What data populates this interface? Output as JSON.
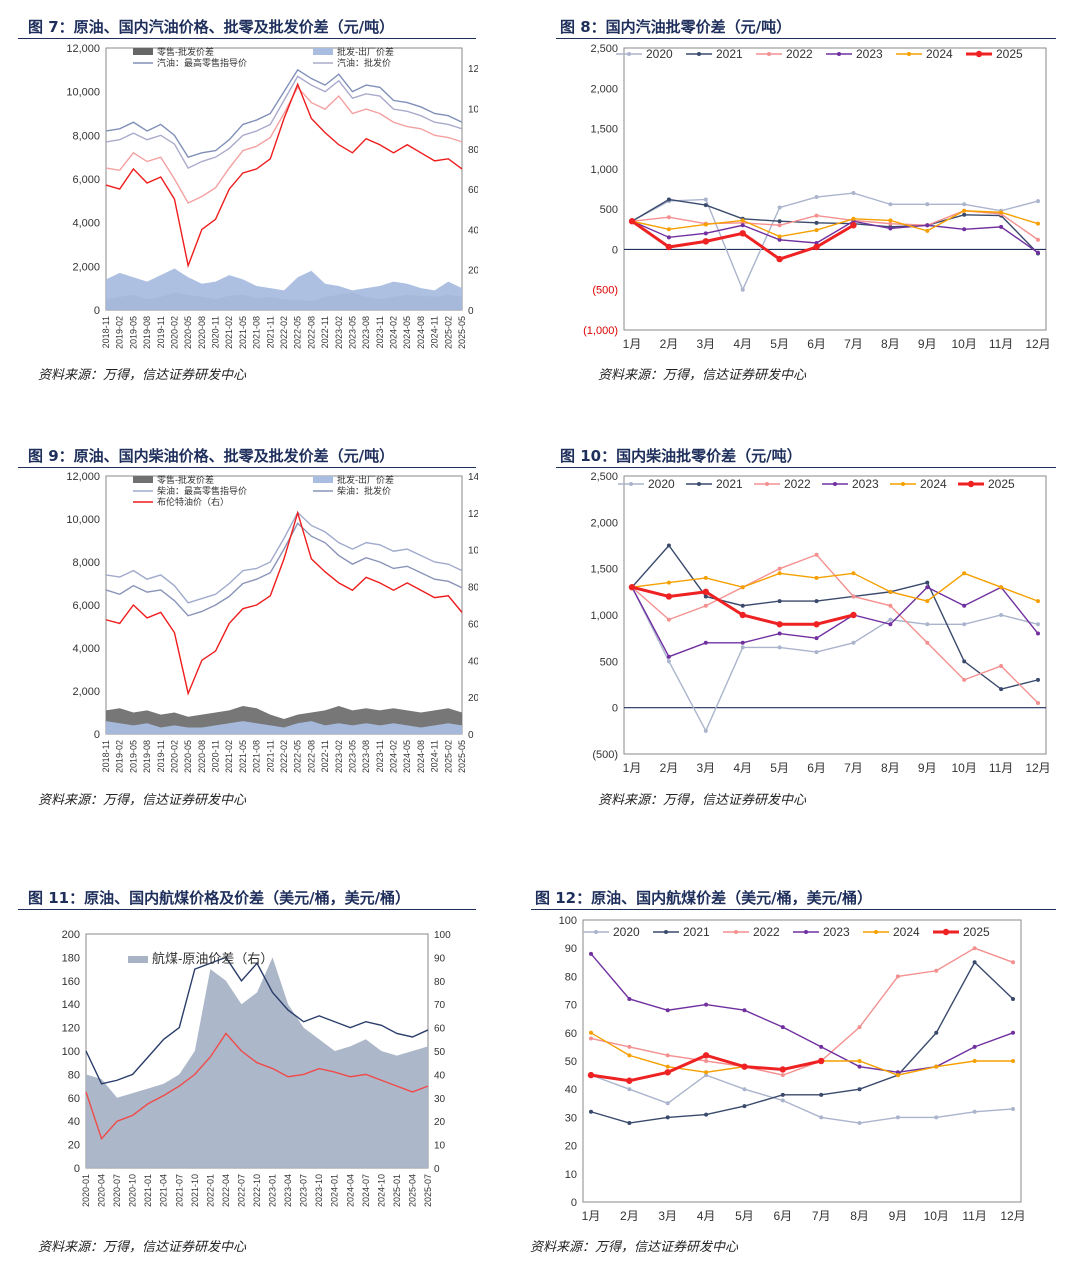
{
  "source": "资料来源：万得，信达证券研发中心",
  "chart_data": [
    {
      "id": "fig7",
      "title": "图 7：原油、国内汽油价格、批零及批发价差（元/吨）",
      "type": "area",
      "x_ticks": [
        "2018-11",
        "2019-02",
        "2019-05",
        "2019-08",
        "2019-11",
        "2020-02",
        "2020-05",
        "2020-08",
        "2020-11",
        "2021-02",
        "2021-05",
        "2021-08",
        "2021-11",
        "2022-02",
        "2022-05",
        "2022-08",
        "2022-11",
        "2023-02",
        "2023-05",
        "2023-08",
        "2023-11",
        "2024-02",
        "2024-05",
        "2024-08",
        "2024-11",
        "2025-02",
        "2025-05"
      ],
      "ylim": [
        0,
        12000
      ],
      "y_ticks": [
        "0",
        "2,000",
        "4,000",
        "6,000",
        "8,000",
        "10,000",
        "12,000"
      ],
      "y2lim": [
        0,
        130
      ],
      "y2_ticks": [
        "0",
        "20",
        "40",
        "60",
        "80",
        "100",
        "120"
      ],
      "legend": [
        "零售-批发价差",
        "批发-出厂价差",
        "汽油：最高零售指导价",
        "汽油：批发价"
      ],
      "series": [
        {
          "name": "零售-批发价差",
          "axis": "left",
          "kind": "area",
          "color": "#666666",
          "values": [
            500,
            600,
            700,
            500,
            600,
            800,
            700,
            600,
            500,
            650,
            700,
            550,
            600,
            500,
            450,
            400,
            600,
            700,
            800,
            600,
            500,
            600,
            700,
            650,
            600,
            700,
            600
          ]
        },
        {
          "name": "批发-出厂价差",
          "axis": "left",
          "kind": "area",
          "color": "#a9bde0",
          "values": [
            1400,
            1700,
            1500,
            1300,
            1600,
            1900,
            1500,
            1200,
            1300,
            1600,
            1400,
            1100,
            1000,
            900,
            1500,
            1800,
            1200,
            1100,
            900,
            1000,
            1100,
            1300,
            1200,
            1000,
            900,
            1300,
            1000
          ]
        },
        {
          "name": "汽油：最高零售指导价",
          "axis": "left",
          "kind": "line",
          "color": "#8090b8",
          "values": [
            8200,
            8300,
            8600,
            8200,
            8500,
            8000,
            7000,
            7200,
            7300,
            7800,
            8500,
            8700,
            9000,
            10000,
            11000,
            10600,
            10300,
            10800,
            10000,
            10300,
            10200,
            9600,
            9500,
            9300,
            9000,
            8900,
            8600
          ]
        },
        {
          "name": "汽油：批发价",
          "axis": "left",
          "kind": "line",
          "color": "#aaaacc",
          "values": [
            7700,
            7800,
            8100,
            7800,
            8000,
            7600,
            6500,
            6800,
            7000,
            7400,
            8000,
            8200,
            8500,
            9600,
            10700,
            10300,
            10000,
            10500,
            9700,
            9900,
            9800,
            9200,
            9100,
            8900,
            8600,
            8500,
            8300
          ]
        },
        {
          "name": "",
          "axis": "left",
          "kind": "line",
          "color": "#f4a0a0",
          "values": [
            6500,
            6400,
            7200,
            6800,
            7000,
            6000,
            4900,
            5200,
            5600,
            6500,
            7300,
            7500,
            7900,
            9000,
            10200,
            9500,
            9200,
            9800,
            9000,
            9200,
            9000,
            8600,
            8400,
            8300,
            8000,
            7900,
            7700
          ]
        },
        {
          "name": "",
          "axis": "right",
          "kind": "line",
          "color": "#ee1c1c",
          "values": [
            62,
            60,
            70,
            63,
            66,
            55,
            22,
            40,
            45,
            60,
            68,
            70,
            75,
            95,
            112,
            95,
            88,
            82,
            78,
            85,
            82,
            78,
            82,
            78,
            74,
            75,
            70
          ]
        }
      ]
    },
    {
      "id": "fig8",
      "title": "图 8：国内汽油批零价差（元/吨）",
      "type": "line",
      "x_ticks": [
        "1月",
        "2月",
        "3月",
        "4月",
        "5月",
        "6月",
        "7月",
        "8月",
        "9月",
        "10月",
        "11月",
        "12月"
      ],
      "ylim": [
        -1000,
        2500
      ],
      "y_ticks": [
        "(1,000)",
        "(500)",
        "0",
        "500",
        "1,000",
        "1,500",
        "2,000",
        "2,500"
      ],
      "series": [
        {
          "name": "2020",
          "color": "#aab4cc",
          "values": [
            350,
            600,
            620,
            -500,
            520,
            650,
            700,
            560,
            560,
            560,
            480,
            600
          ]
        },
        {
          "name": "2021",
          "color": "#3a4a6c",
          "values": [
            350,
            620,
            550,
            380,
            350,
            330,
            320,
            280,
            300,
            430,
            420,
            -50
          ]
        },
        {
          "name": "2022",
          "color": "#f49090",
          "values": [
            350,
            400,
            320,
            330,
            300,
            420,
            360,
            320,
            300,
            480,
            440,
            120
          ]
        },
        {
          "name": "2023",
          "color": "#7030a0",
          "values": [
            350,
            150,
            200,
            300,
            120,
            80,
            350,
            260,
            300,
            250,
            280,
            -40
          ]
        },
        {
          "name": "2024",
          "color": "#f5a000",
          "values": [
            350,
            250,
            310,
            360,
            160,
            240,
            380,
            360,
            230,
            480,
            460,
            320
          ]
        },
        {
          "name": "2025",
          "color": "#ee2222",
          "values": [
            350,
            30,
            100,
            200,
            -120,
            30,
            300
          ]
        }
      ]
    },
    {
      "id": "fig9",
      "title": "图 9：原油、国内柴油价格、批零及批发价差（元/吨）",
      "type": "area",
      "x_ticks": [
        "2018-11",
        "2019-02",
        "2019-05",
        "2019-08",
        "2019-11",
        "2020-02",
        "2020-05",
        "2020-08",
        "2020-11",
        "2021-02",
        "2021-05",
        "2021-08",
        "2021-11",
        "2022-02",
        "2022-05",
        "2022-08",
        "2022-11",
        "2023-02",
        "2023-05",
        "2023-08",
        "2023-11",
        "2024-02",
        "2024-05",
        "2024-08",
        "2024-11",
        "2025-02",
        "2025-05"
      ],
      "ylim": [
        0,
        12000
      ],
      "y_ticks": [
        "0",
        "2,000",
        "4,000",
        "6,000",
        "8,000",
        "10,000",
        "12,000"
      ],
      "y2lim": [
        0,
        140
      ],
      "y2_ticks": [
        "0",
        "20",
        "40",
        "60",
        "80",
        "100",
        "120",
        "140"
      ],
      "legend": [
        "零售-批发价差",
        "批发-出厂价差",
        "柴油：最高零售指导价",
        "柴油：批发价",
        "布伦特油价（右）"
      ],
      "series": [
        {
          "name": "零售-批发价差",
          "axis": "left",
          "kind": "area",
          "color": "#707070",
          "values": [
            1100,
            1200,
            1000,
            1100,
            900,
            1000,
            800,
            900,
            1000,
            1100,
            1300,
            1200,
            900,
            700,
            900,
            1000,
            1100,
            1300,
            1100,
            1200,
            1100,
            1200,
            1100,
            1000,
            1100,
            1200,
            1000
          ]
        },
        {
          "name": "批发-出厂价差",
          "axis": "left",
          "kind": "area",
          "color": "#a9bde0",
          "values": [
            600,
            500,
            400,
            500,
            300,
            400,
            300,
            300,
            400,
            500,
            600,
            500,
            400,
            300,
            500,
            600,
            400,
            500,
            400,
            500,
            400,
            500,
            400,
            300,
            400,
            500,
            400
          ]
        },
        {
          "name": "柴油：最高零售指导价",
          "axis": "left",
          "kind": "line",
          "color": "#a0aacc",
          "values": [
            7400,
            7300,
            7600,
            7200,
            7400,
            6900,
            6100,
            6300,
            6500,
            7000,
            7600,
            7700,
            8000,
            9100,
            10300,
            9700,
            9400,
            8900,
            8600,
            8900,
            8800,
            8500,
            8600,
            8300,
            8000,
            7900,
            7600
          ]
        },
        {
          "name": "柴油：批发价",
          "axis": "left",
          "kind": "line",
          "color": "#8a94b8",
          "values": [
            6700,
            6500,
            6900,
            6600,
            6700,
            6200,
            5500,
            5700,
            6000,
            6400,
            7000,
            7200,
            7500,
            8600,
            9800,
            9200,
            8900,
            8300,
            7900,
            8200,
            8000,
            7700,
            7800,
            7500,
            7200,
            7100,
            6800
          ]
        },
        {
          "name": "布伦特油价（右）",
          "axis": "right",
          "kind": "line",
          "color": "#ee1c1c",
          "values": [
            62,
            60,
            70,
            63,
            66,
            55,
            22,
            40,
            45,
            60,
            68,
            70,
            75,
            95,
            120,
            95,
            88,
            82,
            78,
            85,
            82,
            78,
            82,
            78,
            74,
            75,
            66
          ]
        }
      ]
    },
    {
      "id": "fig10",
      "title": "图 10：国内柴油批零价差（元/吨）",
      "type": "line",
      "x_ticks": [
        "1月",
        "2月",
        "3月",
        "4月",
        "5月",
        "6月",
        "7月",
        "8月",
        "9月",
        "10月",
        "11月",
        "12月"
      ],
      "ylim": [
        -500,
        2500
      ],
      "y_ticks": [
        "(500)",
        "0",
        "500",
        "1,000",
        "1,500",
        "2,000",
        "2,500"
      ],
      "series": [
        {
          "name": "2020",
          "color": "#aab4cc",
          "values": [
            1300,
            500,
            -250,
            650,
            650,
            600,
            700,
            950,
            900,
            900,
            1000,
            900
          ]
        },
        {
          "name": "2021",
          "color": "#3a4a6c",
          "values": [
            1300,
            1750,
            1200,
            1100,
            1150,
            1150,
            1200,
            1250,
            1350,
            500,
            200,
            300
          ]
        },
        {
          "name": "2022",
          "color": "#f49090",
          "values": [
            1300,
            950,
            1100,
            1300,
            1500,
            1650,
            1200,
            1100,
            700,
            300,
            450,
            50
          ]
        },
        {
          "name": "2023",
          "color": "#7030a0",
          "values": [
            1300,
            550,
            700,
            700,
            800,
            750,
            1000,
            900,
            1300,
            1100,
            1300,
            800
          ]
        },
        {
          "name": "2024",
          "color": "#f5a000",
          "values": [
            1300,
            1350,
            1400,
            1300,
            1450,
            1400,
            1450,
            1250,
            1150,
            1450,
            1300,
            1150
          ]
        },
        {
          "name": "2025",
          "color": "#ee2222",
          "values": [
            1300,
            1200,
            1250,
            1000,
            900,
            900,
            1000
          ]
        }
      ]
    },
    {
      "id": "fig11",
      "title": "图 11：原油、国内航煤价格及价差（美元/桶，美元/桶）",
      "type": "area",
      "x_ticks": [
        "2020-01",
        "2020-04",
        "2020-07",
        "2020-10",
        "2021-01",
        "2021-04",
        "2021-07",
        "2021-10",
        "2022-01",
        "2022-04",
        "2022-07",
        "2022-10",
        "2023-01",
        "2023-04",
        "2023-07",
        "2023-10",
        "2024-01",
        "2024-04",
        "2024-07",
        "2024-10",
        "2025-01",
        "2025-04",
        "2025-07"
      ],
      "ylim": [
        0,
        200
      ],
      "y_ticks": [
        "0",
        "20",
        "40",
        "60",
        "80",
        "100",
        "120",
        "140",
        "160",
        "180",
        "200"
      ],
      "y2lim": [
        0,
        100
      ],
      "y2_ticks": [
        "0",
        "10",
        "20",
        "30",
        "40",
        "50",
        "60",
        "70",
        "80",
        "90",
        "100"
      ],
      "legend": [
        "航煤-原油价差（右）"
      ],
      "series": [
        {
          "name": "航煤-原油价差（右）",
          "axis": "right",
          "kind": "area",
          "color": "#a8b4c6",
          "values": [
            40,
            38,
            30,
            32,
            34,
            36,
            40,
            50,
            85,
            80,
            70,
            75,
            90,
            70,
            60,
            55,
            50,
            52,
            55,
            50,
            48,
            50,
            52
          ]
        },
        {
          "name": "",
          "axis": "left",
          "kind": "line",
          "color": "#2a3d6b",
          "values": [
            100,
            72,
            75,
            80,
            95,
            110,
            120,
            170,
            175,
            180,
            160,
            175,
            150,
            135,
            125,
            130,
            125,
            120,
            125,
            122,
            115,
            112,
            118
          ]
        },
        {
          "name": "",
          "axis": "left",
          "kind": "line",
          "color": "#f04a4a",
          "values": [
            65,
            25,
            40,
            45,
            55,
            62,
            70,
            80,
            95,
            115,
            100,
            90,
            85,
            78,
            80,
            85,
            82,
            78,
            80,
            75,
            70,
            65,
            70
          ]
        }
      ]
    },
    {
      "id": "fig12",
      "title": "图 12：原油、国内航煤价差（美元/桶，美元/桶）",
      "type": "line",
      "x_ticks": [
        "1月",
        "2月",
        "3月",
        "4月",
        "5月",
        "6月",
        "7月",
        "8月",
        "9月",
        "10月",
        "11月",
        "12月"
      ],
      "ylim": [
        0,
        100
      ],
      "y_ticks": [
        "0",
        "10",
        "20",
        "30",
        "40",
        "50",
        "60",
        "70",
        "80",
        "90",
        "100"
      ],
      "series": [
        {
          "name": "2020",
          "color": "#aab4cc",
          "values": [
            45,
            40,
            35,
            45,
            40,
            36,
            30,
            28,
            30,
            30,
            32,
            33
          ]
        },
        {
          "name": "2021",
          "color": "#3a4a6c",
          "values": [
            32,
            28,
            30,
            31,
            34,
            38,
            38,
            40,
            45,
            60,
            85,
            72
          ]
        },
        {
          "name": "2022",
          "color": "#f49090",
          "values": [
            58,
            55,
            52,
            50,
            48,
            45,
            50,
            62,
            80,
            82,
            90,
            85
          ]
        },
        {
          "name": "2023",
          "color": "#7030a0",
          "values": [
            88,
            72,
            68,
            70,
            68,
            62,
            55,
            48,
            46,
            48,
            55,
            60
          ]
        },
        {
          "name": "2024",
          "color": "#f5a000",
          "values": [
            60,
            52,
            48,
            46,
            48,
            47,
            50,
            50,
            45,
            48,
            50,
            50
          ]
        },
        {
          "name": "2025",
          "color": "#ee2222",
          "values": [
            45,
            43,
            46,
            52,
            48,
            47,
            50
          ]
        }
      ]
    }
  ]
}
